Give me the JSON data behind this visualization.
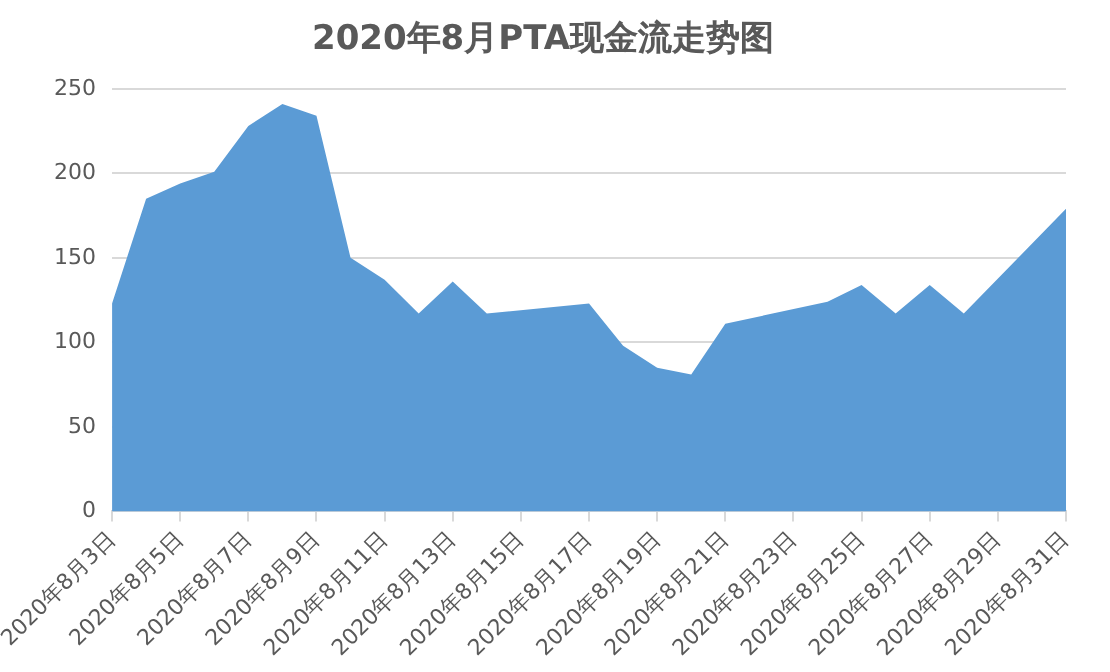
{
  "chart_data": {
    "type": "area",
    "title": "2020年8月PTA现金流走势图",
    "x": [
      "2020-08-03",
      "2020-08-04",
      "2020-08-05",
      "2020-08-06",
      "2020-08-07",
      "2020-08-08",
      "2020-08-09",
      "2020-08-10",
      "2020-08-11",
      "2020-08-12",
      "2020-08-13",
      "2020-08-14",
      "2020-08-17",
      "2020-08-18",
      "2020-08-19",
      "2020-08-20",
      "2020-08-21",
      "2020-08-24",
      "2020-08-25",
      "2020-08-26",
      "2020-08-27",
      "2020-08-28",
      "2020-08-31"
    ],
    "series": [
      {
        "color": "#5b9bd5",
        "values": [
          123,
          185,
          194,
          201,
          228,
          241,
          234,
          150,
          137,
          117,
          136,
          117,
          123,
          98,
          85,
          81,
          111,
          124,
          134,
          117,
          134,
          117,
          179
        ]
      }
    ],
    "xlim": [
      "2020-08-03",
      "2020-08-31"
    ],
    "xticks": [
      {
        "value": "2020-08-03",
        "label": "2020年8月3日"
      },
      {
        "value": "2020-08-05",
        "label": "2020年8月5日"
      },
      {
        "value": "2020-08-07",
        "label": "2020年8月7日"
      },
      {
        "value": "2020-08-09",
        "label": "2020年8月9日"
      },
      {
        "value": "2020-08-11",
        "label": "2020年8月11日"
      },
      {
        "value": "2020-08-13",
        "label": "2020年8月13日"
      },
      {
        "value": "2020-08-15",
        "label": "2020年8月15日"
      },
      {
        "value": "2020-08-17",
        "label": "2020年8月17日"
      },
      {
        "value": "2020-08-19",
        "label": "2020年8月19日"
      },
      {
        "value": "2020-08-21",
        "label": "2020年8月21日"
      },
      {
        "value": "2020-08-23",
        "label": "2020年8月23日"
      },
      {
        "value": "2020-08-25",
        "label": "2020年8月25日"
      },
      {
        "value": "2020-08-27",
        "label": "2020年8月27日"
      },
      {
        "value": "2020-08-29",
        "label": "2020年8月29日"
      },
      {
        "value": "2020-08-31",
        "label": "2020年8月31日"
      }
    ],
    "ylim": [
      0,
      250
    ],
    "yticks": [
      0,
      50,
      100,
      150,
      200,
      250
    ],
    "grid": "y",
    "legend": false
  }
}
